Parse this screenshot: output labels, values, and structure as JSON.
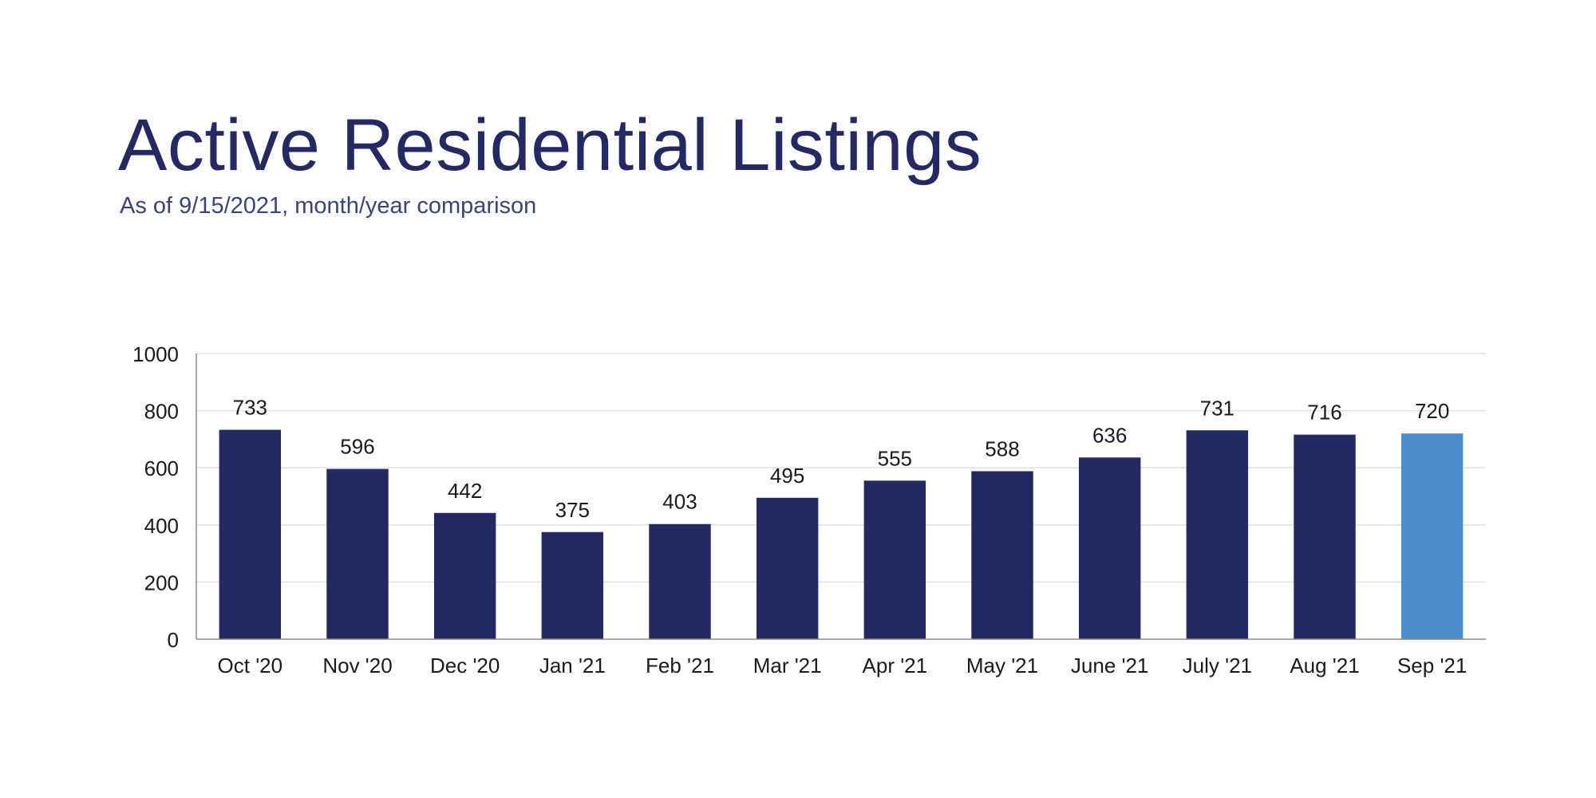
{
  "title": "Active Residential Listings",
  "subtitle": "As of 9/15/2021, month/year comparison",
  "chart_data": {
    "type": "bar",
    "categories": [
      "Oct '20",
      "Nov '20",
      "Dec '20",
      "Jan '21",
      "Feb '21",
      "Mar '21",
      "Apr '21",
      "May '21",
      "June '21",
      "July '21",
      "Aug '21",
      "Sep '21"
    ],
    "values": [
      733,
      596,
      442,
      375,
      403,
      495,
      555,
      588,
      636,
      731,
      716,
      720
    ],
    "ylim": [
      0,
      1000
    ],
    "yticks": [
      0,
      200,
      400,
      600,
      800,
      1000
    ],
    "grid": true,
    "legend": "none",
    "bar_color": "#232a63",
    "highlight_color": "#4a8ecb",
    "highlight_index": 11
  }
}
